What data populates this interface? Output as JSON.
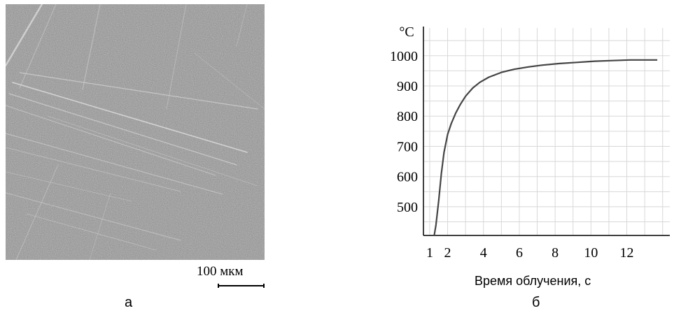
{
  "panel_a": {
    "scale_label": "100 мкм",
    "sublabel": "а"
  },
  "panel_b": {
    "sublabel": "б"
  },
  "colors": {
    "micrograph_background": "#8a8a8a",
    "grid": "#d8d8d8",
    "curve": "#444444"
  },
  "chart_data": {
    "type": "line",
    "title": "",
    "ylabel": "°C",
    "xlabel": "Время облучения, с",
    "x_ticks": [
      "1",
      "2",
      "4",
      "6",
      "8",
      "10",
      "12"
    ],
    "y_ticks": [
      "500",
      "600",
      "700",
      "800",
      "900",
      "1000"
    ],
    "xlim": [
      0.65,
      14.4
    ],
    "ylim": [
      405,
      1092
    ],
    "grid": true,
    "series": [
      {
        "x": [
          1.25,
          1.35,
          1.5,
          1.65,
          1.8,
          2.0,
          2.2,
          2.45,
          2.7,
          3.0,
          3.4,
          3.8,
          4.3,
          5.0,
          5.7,
          6.5,
          7.3,
          8.2,
          9.2,
          10.2,
          11.2,
          12.2,
          13.1,
          13.7
        ],
        "y": [
          405,
          440,
          520,
          610,
          680,
          740,
          775,
          810,
          838,
          866,
          893,
          912,
          929,
          945,
          955,
          963,
          969,
          974,
          978,
          982,
          984,
          986,
          986,
          986
        ]
      }
    ]
  }
}
